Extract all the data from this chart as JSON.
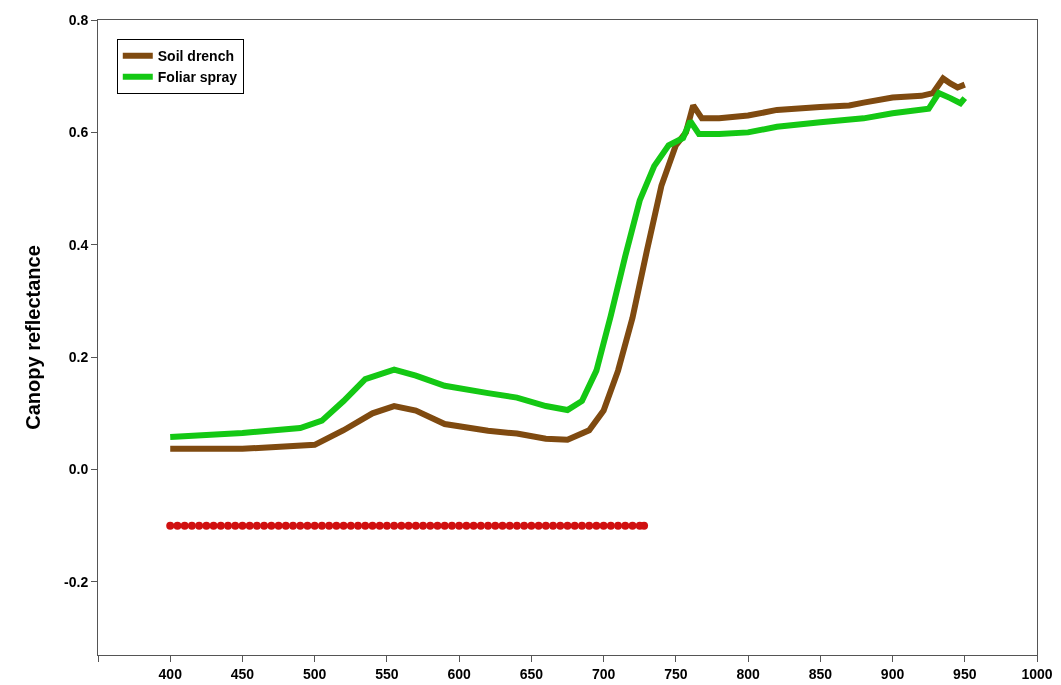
{
  "chart_data": {
    "type": "line",
    "ylabel": "Canopy reflectance",
    "xlim": [
      350,
      1000
    ],
    "xticks": [
      {
        "value": 350,
        "label": null
      },
      400,
      450,
      500,
      550,
      600,
      650,
      700,
      750,
      800,
      850,
      900,
      950,
      1000
    ],
    "ylim": [
      -0.33,
      0.8
    ],
    "yticks": [
      -0.2,
      {
        "value": 0,
        "label": "0.0"
      },
      0.2,
      0.4,
      0.6,
      0.8
    ],
    "grid": false,
    "legend": "top left",
    "marker": "none",
    "line_style": "solid",
    "series": [
      {
        "name": "Soil drench",
        "color": "#7f4a10",
        "x": [
          400,
          450,
          500,
          520,
          540,
          555,
          570,
          590,
          620,
          640,
          660,
          675,
          690,
          700,
          710,
          720,
          730,
          740,
          750,
          757,
          762,
          768,
          780,
          800,
          820,
          850,
          870,
          880,
          900,
          920,
          928,
          935,
          940,
          945,
          950
        ],
        "values": [
          0.037,
          0.037,
          0.044,
          0.07,
          0.1,
          0.113,
          0.105,
          0.081,
          0.069,
          0.064,
          0.055,
          0.053,
          0.07,
          0.105,
          0.176,
          0.27,
          0.39,
          0.505,
          0.577,
          0.6,
          0.648,
          0.625,
          0.625,
          0.63,
          0.64,
          0.645,
          0.648,
          0.653,
          0.662,
          0.665,
          0.67,
          0.696,
          0.687,
          0.68,
          0.685
        ]
      },
      {
        "name": "Foliar spray",
        "color": "#14c814",
        "x": [
          400,
          450,
          490,
          505,
          520,
          535,
          555,
          570,
          590,
          620,
          640,
          660,
          675,
          685,
          695,
          705,
          715,
          725,
          735,
          745,
          755,
          760,
          766,
          780,
          800,
          820,
          850,
          880,
          900,
          925,
          932,
          940,
          947,
          950
        ],
        "values": [
          0.058,
          0.065,
          0.074,
          0.087,
          0.122,
          0.161,
          0.178,
          0.167,
          0.149,
          0.136,
          0.128,
          0.113,
          0.106,
          0.122,
          0.176,
          0.274,
          0.38,
          0.479,
          0.54,
          0.577,
          0.59,
          0.62,
          0.597,
          0.597,
          0.6,
          0.61,
          0.618,
          0.625,
          0.634,
          0.642,
          0.67,
          0.661,
          0.652,
          0.661
        ]
      },
      {
        "type": "scatter",
        "marker": "circle",
        "color": "#d01010",
        "x": [
          400,
          405,
          410,
          415,
          420,
          425,
          430,
          435,
          440,
          445,
          450,
          455,
          460,
          465,
          470,
          475,
          480,
          485,
          490,
          495,
          500,
          505,
          510,
          515,
          520,
          525,
          530,
          535,
          540,
          545,
          550,
          555,
          560,
          565,
          570,
          575,
          580,
          585,
          590,
          595,
          600,
          605,
          610,
          615,
          620,
          625,
          630,
          635,
          640,
          645,
          650,
          655,
          660,
          665,
          670,
          675,
          680,
          685,
          690,
          695,
          700,
          705,
          710,
          715,
          720,
          725,
          728
        ],
        "values": [
          -0.1,
          -0.1,
          -0.1,
          -0.1,
          -0.1,
          -0.1,
          -0.1,
          -0.1,
          -0.1,
          -0.1,
          -0.1,
          -0.1,
          -0.1,
          -0.1,
          -0.1,
          -0.1,
          -0.1,
          -0.1,
          -0.1,
          -0.1,
          -0.1,
          -0.1,
          -0.1,
          -0.1,
          -0.1,
          -0.1,
          -0.1,
          -0.1,
          -0.1,
          -0.1,
          -0.1,
          -0.1,
          -0.1,
          -0.1,
          -0.1,
          -0.1,
          -0.1,
          -0.1,
          -0.1,
          -0.1,
          -0.1,
          -0.1,
          -0.1,
          -0.1,
          -0.1,
          -0.1,
          -0.1,
          -0.1,
          -0.1,
          -0.1,
          -0.1,
          -0.1,
          -0.1,
          -0.1,
          -0.1,
          -0.1,
          -0.1,
          -0.1,
          -0.1,
          -0.1,
          -0.1,
          -0.1,
          -0.1,
          -0.1,
          -0.1,
          -0.1,
          -0.1
        ]
      }
    ]
  }
}
